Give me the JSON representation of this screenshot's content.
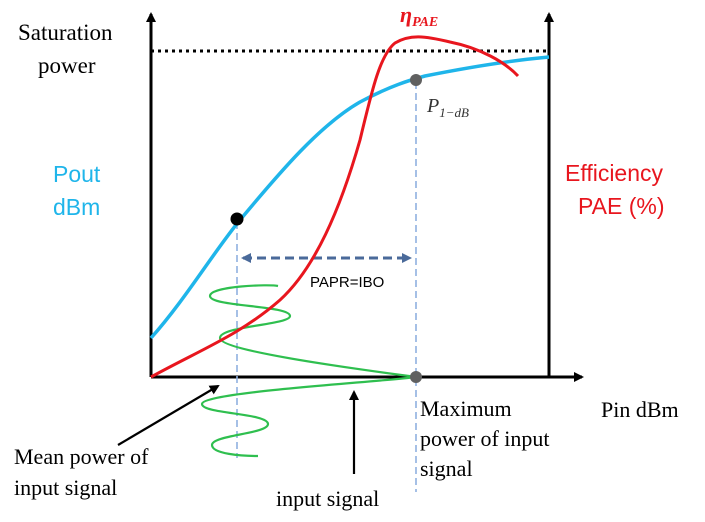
{
  "labels": {
    "saturation_line1": "Saturation",
    "saturation_line2": "power",
    "pout_line1": "Pout",
    "pout_line2": "dBm",
    "efficiency_line1": "Efficiency",
    "efficiency_line2": "PAE (%)",
    "eta_main": "η",
    "eta_sub": "PAE",
    "p1db_main": "P",
    "p1db_sub": "1−dB",
    "papr": "PAPR=IBO",
    "pin": "Pin dBm",
    "max_line1": "Maximum",
    "max_line2": "power of input",
    "max_line3": "signal",
    "mean_line1": "Mean power of",
    "mean_line2": "input signal",
    "input_signal": "input signal"
  },
  "colors": {
    "axis": "#000000",
    "pout_curve": "#1fb5ea",
    "pae_curve": "#e8161e",
    "input_signal": "#2fbf4f",
    "guide_line": "#8fb0e0",
    "papr_arrow": "#4a6a9a",
    "point_gray": "#606060",
    "point_black": "#000000"
  }
}
